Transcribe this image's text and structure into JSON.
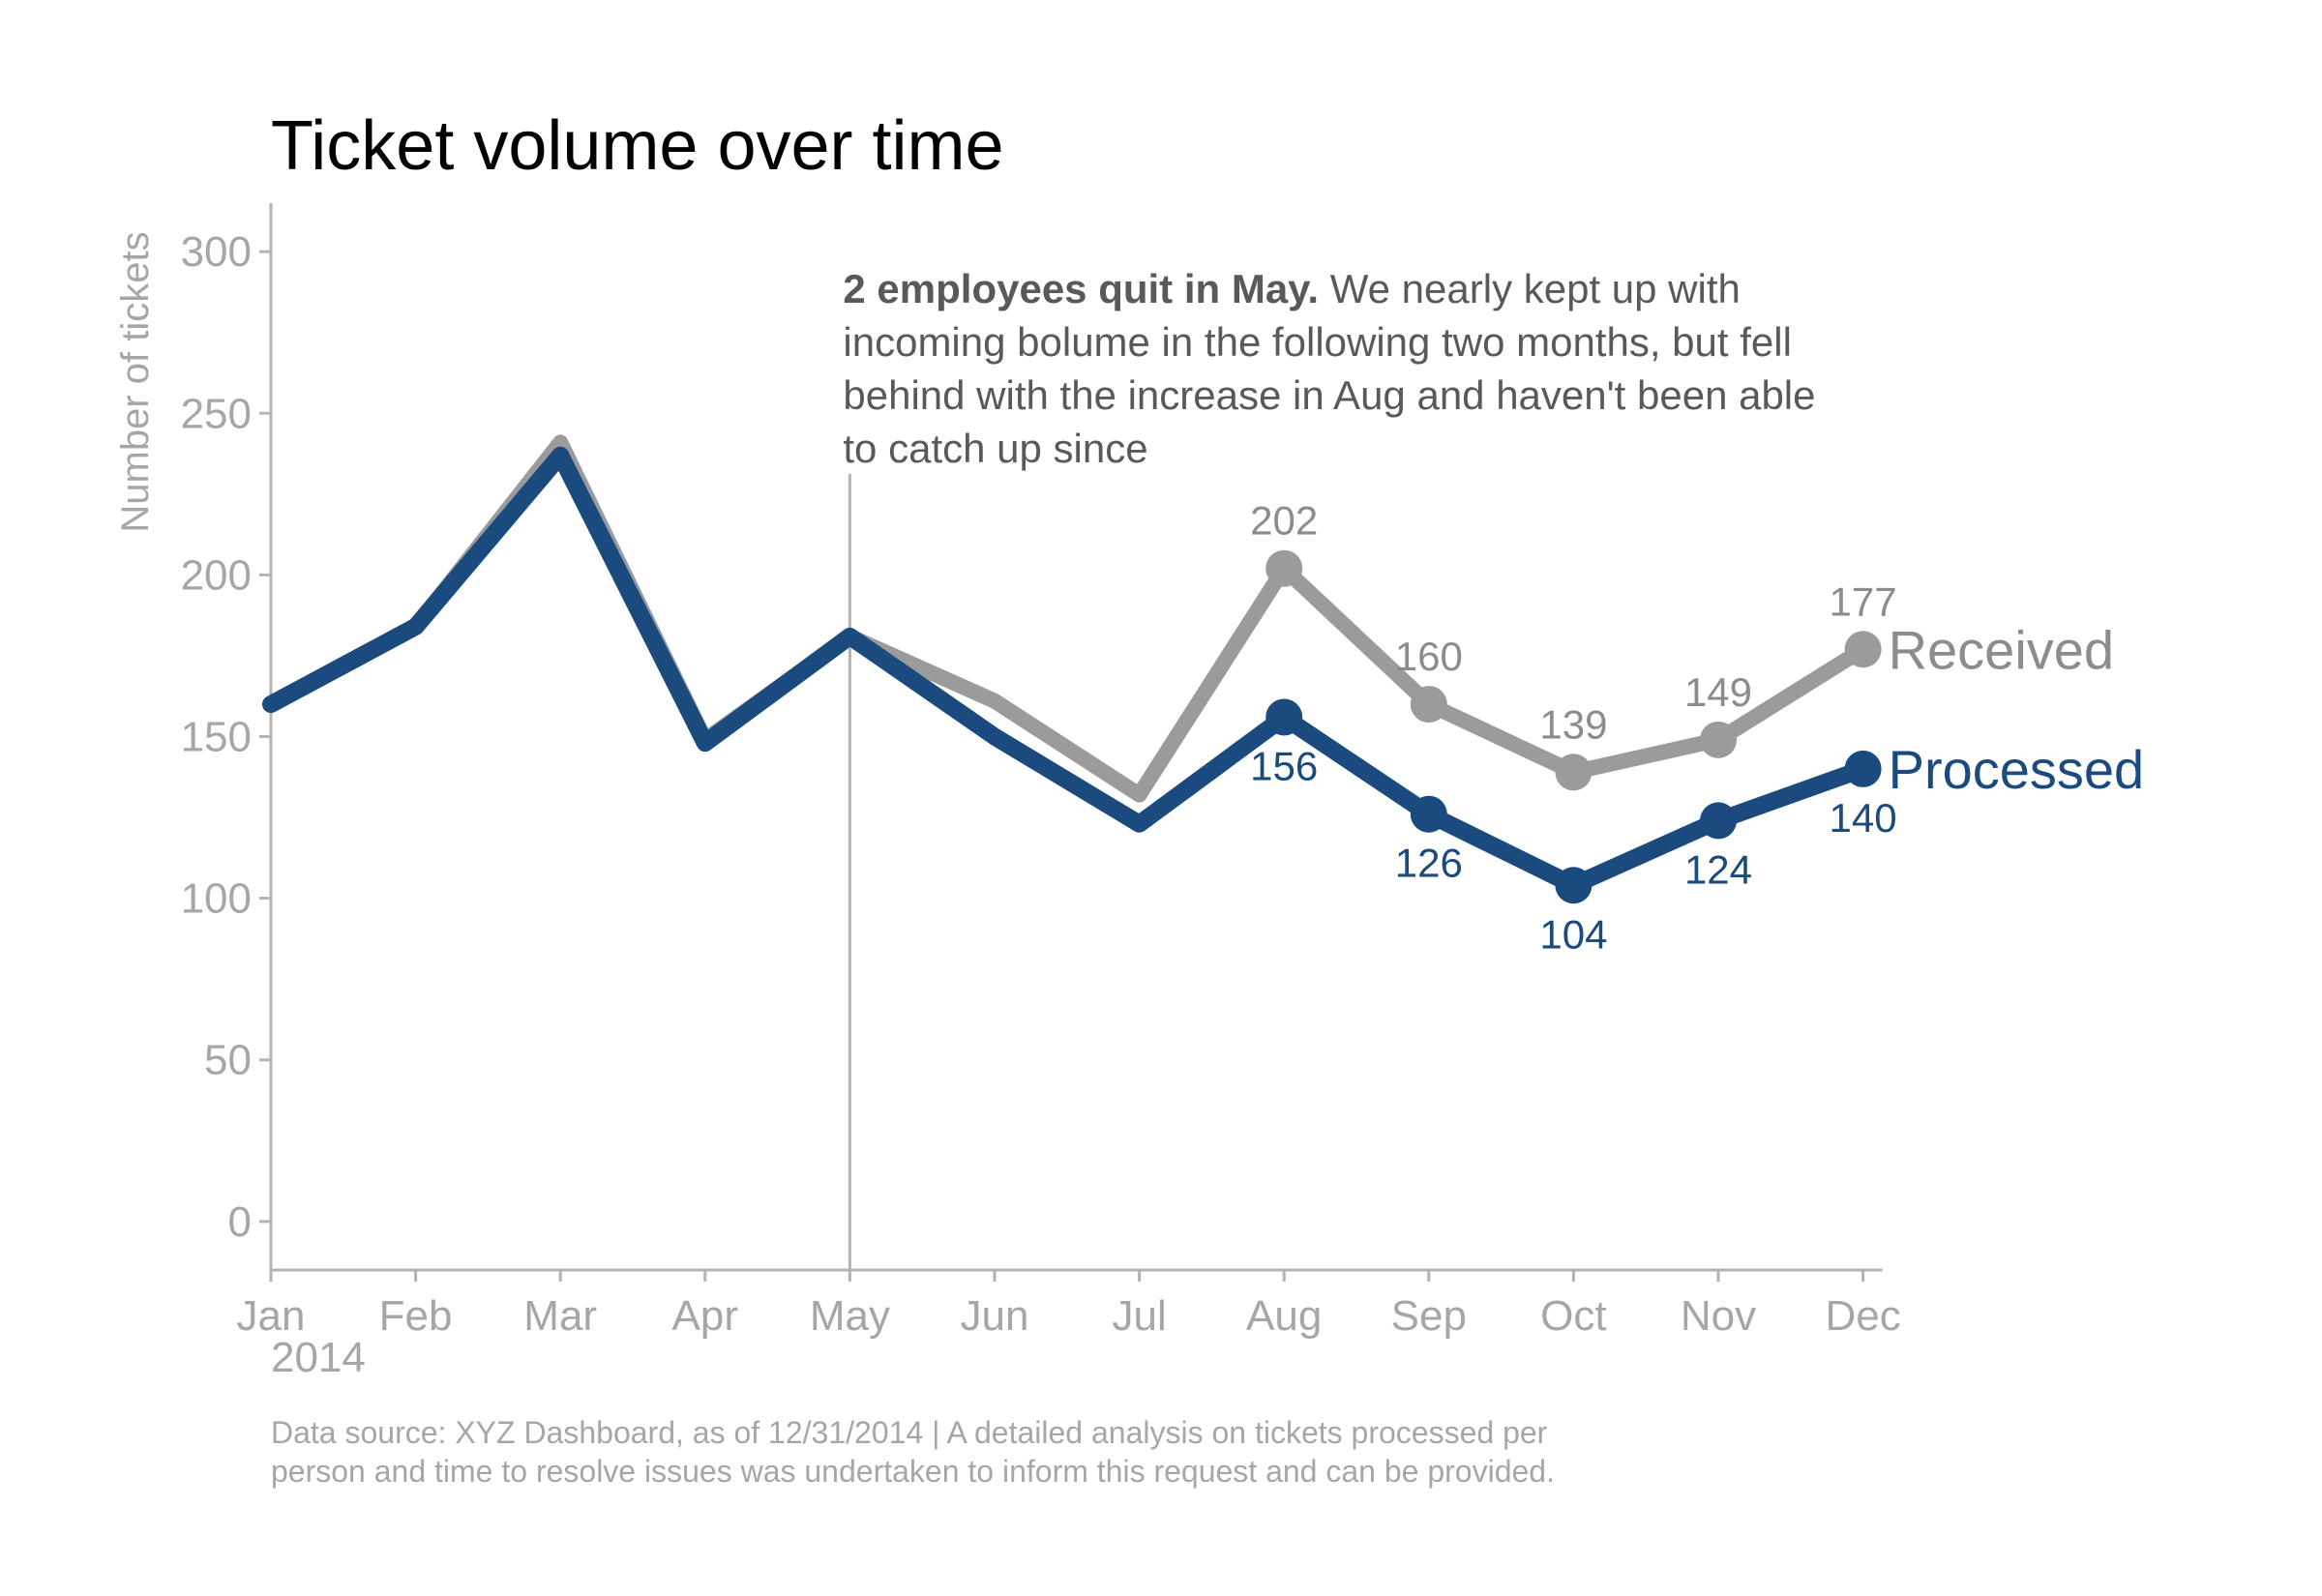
{
  "chart_data": {
    "type": "line",
    "title": "Ticket volume over time",
    "ylabel": "Number of tickets",
    "xlabel": "",
    "year_label": "2014",
    "ylim": [
      -15,
      315
    ],
    "yticks": [
      0,
      50,
      100,
      150,
      200,
      250,
      300
    ],
    "categories": [
      "Jan",
      "Feb",
      "Mar",
      "Apr",
      "May",
      "Jun",
      "Jul",
      "Aug",
      "Sep",
      "Oct",
      "Nov",
      "Dec"
    ],
    "series": [
      {
        "name": "Received",
        "color": "#9b9b9e",
        "values": [
          160,
          184,
          241,
          149,
          181,
          161,
          132,
          202,
          160,
          139,
          149,
          177
        ],
        "labeled_from_index": 7
      },
      {
        "name": "Processed",
        "color": "#1a4a7e",
        "values": [
          160,
          184,
          237,
          148,
          181,
          150,
          123,
          156,
          126,
          104,
          124,
          140
        ],
        "labeled_from_index": 7
      }
    ],
    "annotation": {
      "at_category": "May",
      "bold_text": "2 employees quit in May.",
      "lines": [
        " We nearly kept up with",
        "incoming bolume in the following two months, but fell",
        "behind with the increase in Aug and haven't been able",
        "to catch up since"
      ]
    },
    "footnote": [
      "Data source: XYZ Dashboard, as of 12/31/2014 | A detailed analysis on tickets processed per",
      "person and time to resolve issues was undertaken to inform this request and can be provided."
    ]
  }
}
